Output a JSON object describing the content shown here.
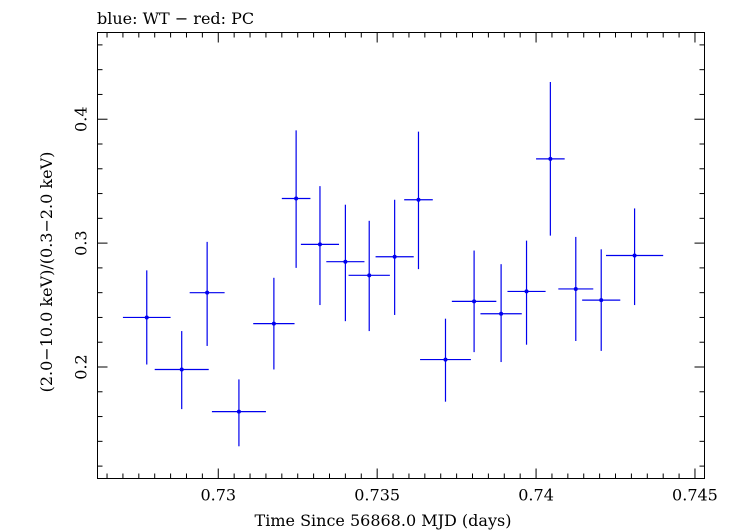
{
  "chart_data": {
    "type": "scatter",
    "title": "blue: WT − red: PC",
    "xlabel": "Time Since 56868.0 MJD (days)",
    "ylabel": "(2.0−10.0 keV)/(0.3−2.0 keV)",
    "xlim": [
      0.7262,
      0.7453
    ],
    "ylim": [
      0.11,
      0.47
    ],
    "x_ticks": [
      0.73,
      0.735,
      0.74,
      0.745
    ],
    "x_tick_labels": [
      "0.73",
      "0.735",
      "0.74",
      "0.745"
    ],
    "y_ticks": [
      0.2,
      0.3,
      0.4
    ],
    "y_tick_labels": [
      "0.2",
      "0.3",
      "0.4"
    ],
    "grid": false,
    "series": [
      {
        "color": "#0000ee",
        "points": [
          {
            "x": 0.72775,
            "xerr": 0.00075,
            "y": 0.24,
            "ylo": 0.202,
            "yhi": 0.278
          },
          {
            "x": 0.72885,
            "xerr": 0.00085,
            "y": 0.198,
            "ylo": 0.166,
            "yhi": 0.229
          },
          {
            "x": 0.72965,
            "xerr": 0.00055,
            "y": 0.26,
            "ylo": 0.217,
            "yhi": 0.301
          },
          {
            "x": 0.73065,
            "xerr": 0.00085,
            "y": 0.164,
            "ylo": 0.136,
            "yhi": 0.19
          },
          {
            "x": 0.73175,
            "xerr": 0.00065,
            "y": 0.235,
            "ylo": 0.198,
            "yhi": 0.272
          },
          {
            "x": 0.73245,
            "xerr": 0.00045,
            "y": 0.336,
            "ylo": 0.28,
            "yhi": 0.391
          },
          {
            "x": 0.7332,
            "xerr": 0.0006,
            "y": 0.299,
            "ylo": 0.25,
            "yhi": 0.346
          },
          {
            "x": 0.734,
            "xerr": 0.0006,
            "y": 0.285,
            "ylo": 0.237,
            "yhi": 0.331
          },
          {
            "x": 0.73475,
            "xerr": 0.00065,
            "y": 0.274,
            "ylo": 0.229,
            "yhi": 0.318
          },
          {
            "x": 0.73555,
            "xerr": 0.0006,
            "y": 0.289,
            "ylo": 0.242,
            "yhi": 0.335
          },
          {
            "x": 0.7363,
            "xerr": 0.00045,
            "y": 0.335,
            "ylo": 0.279,
            "yhi": 0.39
          },
          {
            "x": 0.73715,
            "xerr": 0.0008,
            "y": 0.206,
            "ylo": 0.172,
            "yhi": 0.239
          },
          {
            "x": 0.73805,
            "xerr": 0.0007,
            "y": 0.253,
            "ylo": 0.212,
            "yhi": 0.294
          },
          {
            "x": 0.7389,
            "xerr": 0.00065,
            "y": 0.243,
            "ylo": 0.204,
            "yhi": 0.283
          },
          {
            "x": 0.7397,
            "xerr": 0.0006,
            "y": 0.261,
            "ylo": 0.218,
            "yhi": 0.302
          },
          {
            "x": 0.74045,
            "xerr": 0.00045,
            "y": 0.368,
            "ylo": 0.306,
            "yhi": 0.43
          },
          {
            "x": 0.74125,
            "xerr": 0.00055,
            "y": 0.263,
            "ylo": 0.221,
            "yhi": 0.305
          },
          {
            "x": 0.74205,
            "xerr": 0.0006,
            "y": 0.254,
            "ylo": 0.213,
            "yhi": 0.295
          },
          {
            "x": 0.7431,
            "xerr": 0.0009,
            "y": 0.29,
            "ylo": 0.25,
            "yhi": 0.328
          }
        ]
      }
    ]
  }
}
